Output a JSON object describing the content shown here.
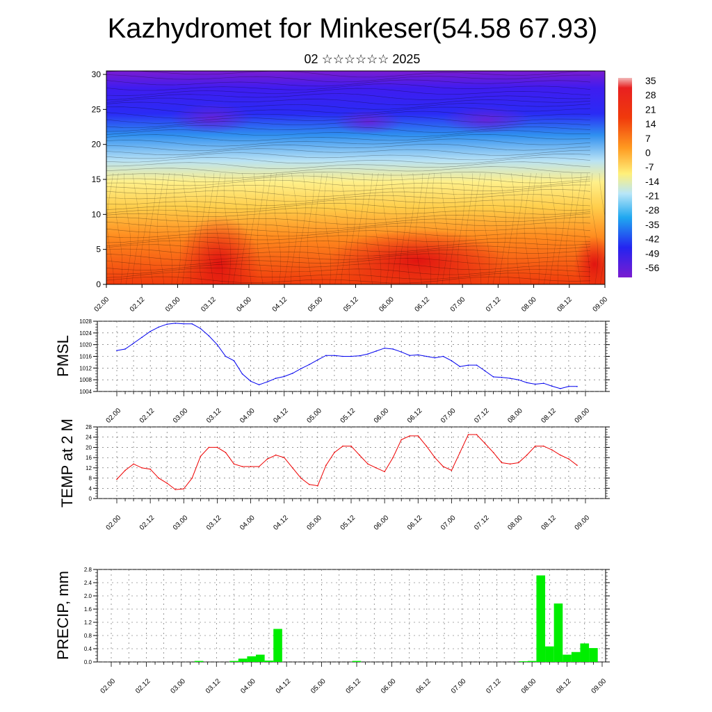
{
  "title": "Kazhydromet for Minkeser(54.58 67.93)",
  "subtitle": "02 ☆☆☆☆☆☆ 2025",
  "colors": {
    "pmsl_line": "#0000ee",
    "temp_line": "#ee0000",
    "precip_bar": "#00ee00"
  },
  "chart_data": [
    {
      "type": "heatmap",
      "name": "temperature-cross-section",
      "x_tick_labels": [
        "02.00",
        "02.12",
        "03.00",
        "03.12",
        "04.00",
        "04.12",
        "05.00",
        "05.12",
        "06.00",
        "06.12",
        "07.00",
        "07.12",
        "08.00",
        "08.12",
        "09.00"
      ],
      "y_tick_labels": [
        "0",
        "5",
        "10",
        "15",
        "20",
        "25",
        "30"
      ],
      "ylim": [
        0,
        30.5
      ],
      "colorbar_labels": [
        "35",
        "28",
        "21",
        "14",
        "7",
        "0",
        "-7",
        "-14",
        "-21",
        "-28",
        "-35",
        "-42",
        "-49",
        "-56"
      ],
      "colorbar_range": [
        -63,
        42
      ]
    },
    {
      "type": "line",
      "ylabel": "PMSL",
      "ylim": [
        1004,
        1028
      ],
      "y_tick_labels": [
        "1004",
        "1008",
        "1012",
        "1016",
        "1020",
        "1024",
        "1028"
      ],
      "x_tick_labels": [
        "02.00",
        "02.12",
        "03.00",
        "03.12",
        "04.00",
        "04.12",
        "05.00",
        "05.12",
        "06.00",
        "06.12",
        "07.00",
        "07.12",
        "08.00",
        "08.12",
        "09.00"
      ],
      "x": [
        0,
        3,
        6,
        9,
        12,
        15,
        18,
        21,
        24,
        27,
        30,
        33,
        36,
        39,
        42,
        45,
        48,
        51,
        54,
        57,
        60,
        63,
        66,
        69,
        72,
        75,
        78,
        81,
        84,
        87,
        90,
        93,
        96,
        99,
        102,
        105,
        108,
        111,
        114,
        117,
        120,
        123,
        126,
        129,
        132,
        135,
        138,
        141,
        144,
        147,
        150,
        153,
        156,
        159,
        162,
        165
      ],
      "values": [
        1018,
        1018.5,
        1020.5,
        1022.5,
        1024.5,
        1026,
        1027,
        1027.3,
        1027.1,
        1027.1,
        1025.5,
        1023,
        1020,
        1016,
        1014.5,
        1010,
        1007.5,
        1006.3,
        1007.3,
        1008.5,
        1009.1,
        1010.2,
        1011.8,
        1013.2,
        1014.8,
        1016.3,
        1016.3,
        1016,
        1016,
        1016.2,
        1016.8,
        1017.8,
        1018.8,
        1018.5,
        1017.5,
        1016.3,
        1016.5,
        1016,
        1015.5,
        1016,
        1014.5,
        1012.5,
        1013,
        1013,
        1011,
        1009,
        1008.8,
        1008.5,
        1008,
        1007,
        1006.5,
        1006.8,
        1005.8,
        1005,
        1005.7,
        1005.7
      ]
    },
    {
      "type": "line",
      "ylabel": "TEMP at 2 M",
      "ylim": [
        0,
        28
      ],
      "y_tick_labels": [
        "0",
        "4",
        "8",
        "12",
        "16",
        "20",
        "24",
        "28"
      ],
      "x_tick_labels": [
        "02.00",
        "02.12",
        "03.00",
        "03.12",
        "04.00",
        "04.12",
        "05.00",
        "05.12",
        "06.00",
        "06.12",
        "07.00",
        "07.12",
        "08.00",
        "08.12",
        "09.00"
      ],
      "x": [
        0,
        3,
        6,
        9,
        12,
        15,
        18,
        21,
        24,
        27,
        30,
        33,
        36,
        39,
        42,
        45,
        48,
        51,
        54,
        57,
        60,
        63,
        66,
        69,
        72,
        75,
        78,
        81,
        84,
        87,
        90,
        93,
        96,
        99,
        102,
        105,
        108,
        111,
        114,
        117,
        120,
        123,
        126,
        129,
        132,
        135,
        138,
        141,
        144,
        147,
        150,
        153,
        156,
        159,
        162,
        165
      ],
      "values": [
        7.5,
        11,
        13.5,
        12,
        11.5,
        8,
        6,
        3.5,
        3.8,
        8,
        16.5,
        20,
        20,
        18,
        13.5,
        12.5,
        12.5,
        12.5,
        15.5,
        17,
        16,
        12,
        8,
        5.5,
        5,
        13,
        18,
        20.5,
        20.5,
        17,
        13.5,
        12,
        10.5,
        16,
        23,
        24.5,
        24.5,
        20.5,
        16,
        12.5,
        11,
        18,
        25,
        25,
        21.5,
        18,
        14,
        13.5,
        14,
        17,
        20.5,
        20.5,
        19,
        17,
        15.5,
        13
      ]
    },
    {
      "type": "bar",
      "ylabel": "PRECIP, mm",
      "ylim": [
        0,
        2.8
      ],
      "y_tick_labels": [
        "0.0",
        "0.4",
        "0.8",
        "1.2",
        "1.6",
        "2.0",
        "2.4",
        "2.8"
      ],
      "x_tick_labels": [
        "02.00",
        "02.12",
        "03.00",
        "03.12",
        "04.00",
        "04.12",
        "05.00",
        "05.12",
        "06.00",
        "06.12",
        "07.00",
        "07.12",
        "08.00",
        "08.12",
        "09.00"
      ],
      "x": [
        0,
        3,
        6,
        9,
        12,
        15,
        18,
        21,
        24,
        27,
        30,
        33,
        36,
        39,
        42,
        45,
        48,
        51,
        54,
        57,
        60,
        63,
        66,
        69,
        72,
        75,
        78,
        81,
        84,
        87,
        90,
        93,
        96,
        99,
        102,
        105,
        108,
        111,
        114,
        117,
        120,
        123,
        126,
        129,
        132,
        135,
        138,
        141,
        144,
        147,
        150,
        153,
        156,
        159,
        162,
        165
      ],
      "values": [
        0,
        0,
        0,
        0,
        0,
        0,
        0,
        0,
        0,
        0,
        0.03,
        0,
        0,
        0,
        0.03,
        0.1,
        0.17,
        0.22,
        0.04,
        1,
        0,
        0,
        0,
        0,
        0,
        0,
        0,
        0,
        0.03,
        0,
        0,
        0,
        0,
        0,
        0,
        0,
        0,
        0,
        0,
        0,
        0,
        0,
        0,
        0,
        0,
        0,
        0,
        0.02,
        0.03,
        2.62,
        0.47,
        1.77,
        0.22,
        0.3,
        0.56,
        0.42
      ]
    }
  ]
}
